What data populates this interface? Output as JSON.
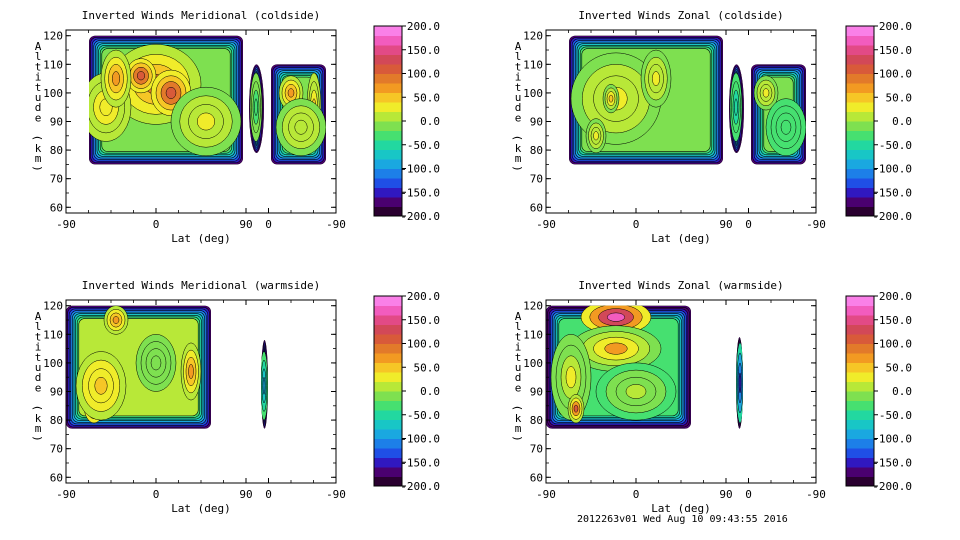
{
  "footer": "2012263v01 Wed Aug 10 09:43:55 2016",
  "colorbar": {
    "tick_labels": [
      "200.0",
      "150.0",
      "100.0",
      "50.0",
      "0.0",
      "-50.0",
      "-100.0",
      "-150.0",
      "-200.0"
    ],
    "range": [
      -200,
      200
    ],
    "colors": [
      "#2a0030",
      "#4a0070",
      "#3018c0",
      "#1f4fe6",
      "#1d7fe8",
      "#1aa8e0",
      "#18c6c6",
      "#22d8a0",
      "#46e070",
      "#7ee050",
      "#b8e838",
      "#f0ec2a",
      "#f6c626",
      "#f29a22",
      "#e27a2a",
      "#d85a3a",
      "#d24858",
      "#e24a86",
      "#f25cbe",
      "#fa80e8"
    ]
  },
  "chart_data": [
    {
      "type": "heatmap",
      "title": "Inverted Winds Meridional (coldside)",
      "xlabel": "Lat (deg)",
      "ylabel": "Altitude (km)",
      "x_tick_labels": [
        "-90",
        "0",
        "90",
        "0",
        "-90"
      ],
      "y_tick_labels": [
        "60",
        "70",
        "80",
        "90",
        "100",
        "110",
        "120"
      ],
      "ylim": [
        58,
        122
      ],
      "zlim": [
        -200,
        200
      ],
      "regions": [
        {
          "x": [
            -67,
            87
          ],
          "y": [
            75,
            120
          ],
          "bottom_edge": [
            [
              -67,
              75
            ],
            [
              -30,
              75
            ],
            [
              -30,
              77
            ],
            [
              15,
              77
            ],
            [
              15,
              79
            ],
            [
              87,
              79
            ]
          ],
          "top_edge": [
            [
              -67,
              120
            ],
            [
              -52,
              120
            ],
            [
              -52,
              111
            ],
            [
              -40,
              111
            ],
            [
              -40,
              120
            ],
            [
              87,
              120
            ]
          ]
        },
        {
          "x": [
            93,
            108
          ],
          "y": [
            79,
            110
          ]
        },
        {
          "x": [
            115,
            170
          ],
          "y": [
            75,
            110
          ]
        }
      ],
      "blobs": [
        {
          "x": 0,
          "y": 103,
          "value": 80,
          "rx": 45,
          "ry": 14
        },
        {
          "x": -15,
          "y": 106,
          "value": 110,
          "rx": 15,
          "ry": 6
        },
        {
          "x": 15,
          "y": 100,
          "value": 110,
          "rx": 20,
          "ry": 8
        },
        {
          "x": -50,
          "y": 95,
          "value": 30,
          "rx": 25,
          "ry": 12
        },
        {
          "x": -40,
          "y": 105,
          "value": 60,
          "rx": 15,
          "ry": 10
        },
        {
          "x": 50,
          "y": 90,
          "value": 20,
          "rx": 35,
          "ry": 12
        },
        {
          "x": 135,
          "y": 100,
          "value": 60,
          "rx": 12,
          "ry": 6
        },
        {
          "x": 158,
          "y": 95,
          "value": 40,
          "rx": 7,
          "ry": 12
        },
        {
          "x": 145,
          "y": 88,
          "value": 10,
          "rx": 25,
          "ry": 10
        },
        {
          "x": 100,
          "y": 95,
          "value": -30,
          "rx": 6,
          "ry": 12
        }
      ],
      "base_value": -10,
      "edge_value": -180
    },
    {
      "type": "heatmap",
      "title": "Inverted Winds Zonal (coldside)",
      "xlabel": "Lat (deg)",
      "ylabel": "Altitude (km)",
      "x_tick_labels": [
        "-90",
        "0",
        "90",
        "0",
        "-90"
      ],
      "y_tick_labels": [
        "60",
        "70",
        "80",
        "90",
        "100",
        "110",
        "120"
      ],
      "ylim": [
        58,
        122
      ],
      "zlim": [
        -200,
        200
      ],
      "regions": [
        {
          "x": [
            -67,
            87
          ],
          "y": [
            75,
            120
          ],
          "bottom_edge": [
            [
              -67,
              75
            ],
            [
              -30,
              75
            ],
            [
              -30,
              77
            ],
            [
              15,
              77
            ],
            [
              15,
              79
            ],
            [
              87,
              79
            ]
          ],
          "top_edge": [
            [
              -67,
              120
            ],
            [
              -52,
              120
            ],
            [
              -52,
              111
            ],
            [
              -40,
              111
            ],
            [
              -40,
              120
            ],
            [
              87,
              120
            ]
          ]
        },
        {
          "x": [
            93,
            108
          ],
          "y": [
            79,
            110
          ]
        },
        {
          "x": [
            115,
            170
          ],
          "y": [
            75,
            110
          ]
        }
      ],
      "blobs": [
        {
          "x": -20,
          "y": 98,
          "value": 20,
          "rx": 45,
          "ry": 16
        },
        {
          "x": -25,
          "y": 98,
          "value": 50,
          "rx": 8,
          "ry": 5
        },
        {
          "x": 20,
          "y": 105,
          "value": 20,
          "rx": 15,
          "ry": 10
        },
        {
          "x": -40,
          "y": 85,
          "value": 20,
          "rx": 10,
          "ry": 6
        },
        {
          "x": 130,
          "y": 100,
          "value": 30,
          "rx": 12,
          "ry": 6
        },
        {
          "x": 150,
          "y": 88,
          "value": -40,
          "rx": 20,
          "ry": 10
        },
        {
          "x": 100,
          "y": 95,
          "value": -60,
          "rx": 6,
          "ry": 12
        }
      ],
      "base_value": -20,
      "edge_value": -180
    },
    {
      "type": "heatmap",
      "title": "Inverted Winds Meridional (warmside)",
      "xlabel": "Lat (deg)",
      "ylabel": "Altitude (km)",
      "x_tick_labels": [
        "-90",
        "0",
        "90",
        "0",
        "-90"
      ],
      "y_tick_labels": [
        "60",
        "70",
        "80",
        "90",
        "100",
        "110",
        "120"
      ],
      "ylim": [
        58,
        122
      ],
      "zlim": [
        -200,
        200
      ],
      "regions": [
        {
          "x": [
            -90,
            55
          ],
          "y": [
            77,
            120
          ],
          "top_edge": [
            [
              -90,
              120
            ],
            [
              -80,
              120
            ],
            [
              -80,
              115
            ],
            [
              -72,
              115
            ],
            [
              -72,
              120
            ],
            [
              40,
              120
            ],
            [
              40,
              118
            ],
            [
              55,
              118
            ]
          ],
          "bottom_edge": [
            [
              -90,
              77
            ],
            [
              55,
              77
            ]
          ]
        },
        {
          "x": [
            105,
            112
          ],
          "y": [
            77,
            108
          ]
        },
        {
          "x": 120,
          "x2": 178,
          "y": [
            77,
            109
          ]
        }
      ],
      "blobs": [
        {
          "x": -62,
          "y": 85,
          "value": 100,
          "rx": 10,
          "ry": 6
        },
        {
          "x": -55,
          "y": 92,
          "value": 40,
          "rx": 25,
          "ry": 12
        },
        {
          "x": -40,
          "y": 115,
          "value": 70,
          "rx": 12,
          "ry": 5
        },
        {
          "x": 35,
          "y": 97,
          "value": 60,
          "rx": 10,
          "ry": 10
        },
        {
          "x": 0,
          "y": 100,
          "value": -20,
          "rx": 20,
          "ry": 10
        },
        {
          "x": 150,
          "y": 98,
          "value": 20,
          "rx": 20,
          "ry": 10
        },
        {
          "x": 155,
          "y": 86,
          "value": 60,
          "rx": 12,
          "ry": 5
        },
        {
          "x": 170,
          "y": 93,
          "value": -80,
          "rx": 8,
          "ry": 6
        },
        {
          "x": 108,
          "y": 92,
          "value": -100,
          "rx": 4,
          "ry": 12
        }
      ],
      "base_value": 0,
      "edge_value": -180
    },
    {
      "type": "heatmap",
      "title": "Inverted Winds Zonal (warmside)",
      "xlabel": "Lat (deg)",
      "ylabel": "Altitude (km)",
      "x_tick_labels": [
        "-90",
        "0",
        "90",
        "0",
        "-90"
      ],
      "y_tick_labels": [
        "60",
        "70",
        "80",
        "90",
        "100",
        "110",
        "120"
      ],
      "ylim": [
        58,
        122
      ],
      "zlim": [
        -200,
        200
      ],
      "regions": [
        {
          "x": [
            -90,
            55
          ],
          "y": [
            77,
            120
          ],
          "top_edge": [
            [
              -90,
              120
            ],
            [
              55,
              120
            ]
          ],
          "bottom_edge": [
            [
              -90,
              77
            ],
            [
              55,
              77
            ]
          ]
        },
        {
          "x": [
            100,
            107
          ],
          "y": [
            77,
            109
          ]
        },
        {
          "x": 117,
          "x2": 178,
          "y": [
            76,
            109
          ]
        }
      ],
      "blobs": [
        {
          "x": -20,
          "y": 116,
          "value": 170,
          "rx": 35,
          "ry": 6
        },
        {
          "x": -20,
          "y": 105,
          "value": 60,
          "rx": 45,
          "ry": 8
        },
        {
          "x": -65,
          "y": 95,
          "value": 20,
          "rx": 20,
          "ry": 15
        },
        {
          "x": -60,
          "y": 84,
          "value": 100,
          "rx": 8,
          "ry": 5
        },
        {
          "x": 0,
          "y": 90,
          "value": 0,
          "rx": 40,
          "ry": 10
        },
        {
          "x": 140,
          "y": 90,
          "value": 20,
          "rx": 18,
          "ry": 6
        },
        {
          "x": 165,
          "y": 90,
          "value": 20,
          "rx": 10,
          "ry": 6
        },
        {
          "x": 150,
          "y": 103,
          "value": -60,
          "rx": 30,
          "ry": 6
        },
        {
          "x": 104,
          "y": 93,
          "value": -150,
          "rx": 4,
          "ry": 14
        }
      ],
      "base_value": -30,
      "edge_value": -180
    }
  ]
}
